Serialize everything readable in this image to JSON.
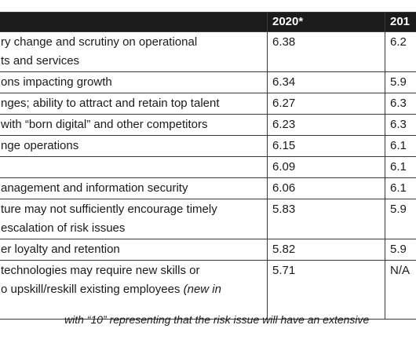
{
  "header": {
    "risk": "",
    "year_2020": "2020*",
    "year_2019": "201"
  },
  "rows": [
    {
      "risk_lines": [
        "ry change and scrutiny on operational",
        "ts and services"
      ],
      "v2020": "6.38",
      "v2019": "6.2"
    },
    {
      "risk_lines": [
        "ons impacting growth"
      ],
      "v2020": "6.34",
      "v2019": "5.9"
    },
    {
      "risk_lines": [
        "nges; ability to attract and retain top talent"
      ],
      "v2020": "6.27",
      "v2019": "6.3"
    },
    {
      "risk_lines": [
        " with “born digital” and other competitors"
      ],
      "v2020": "6.23",
      "v2019": "6.3"
    },
    {
      "risk_lines": [
        "nge operations"
      ],
      "v2020": "6.15",
      "v2019": "6.1"
    },
    {
      "risk_lines": [
        ""
      ],
      "v2020": "6.09",
      "v2019": "6.1"
    },
    {
      "risk_lines": [
        "anagement and information security"
      ],
      "v2020": "6.06",
      "v2019": "6.1"
    },
    {
      "risk_lines": [
        "ture may not sufficiently encourage timely",
        "escalation of risk issues"
      ],
      "v2020": "5.83",
      "v2019": "5.9"
    },
    {
      "risk_lines": [
        "er loyalty and retention"
      ],
      "v2020": "5.82",
      "v2019": "5.9"
    },
    {
      "risk_lines": [
        " technologies may require new skills or",
        "o upskill/reskill existing employees "
      ],
      "risk_note": "(new in",
      "v2020": "5.71",
      "v2019": "N/A"
    }
  ],
  "footnote": "with “10” representing that the risk issue will have an extensive"
}
